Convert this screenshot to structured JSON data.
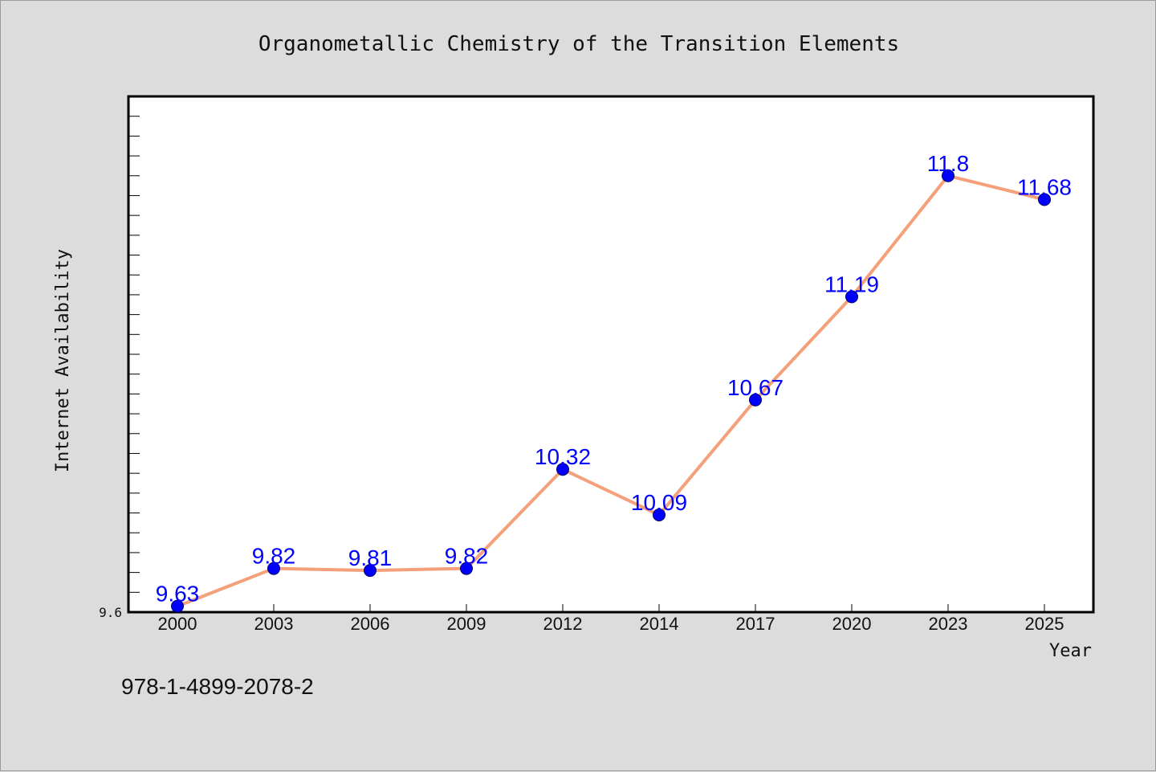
{
  "chart_data": {
    "type": "line",
    "title": "Organometallic Chemistry of the Transition Elements",
    "xlabel": "Year",
    "ylabel": "Internet Availability",
    "categories": [
      "2000",
      "2003",
      "2006",
      "2009",
      "2012",
      "2014",
      "2017",
      "2020",
      "2023",
      "2025"
    ],
    "series": [
      {
        "values": [
          9.63,
          9.82,
          9.81,
          9.82,
          10.32,
          10.09,
          10.67,
          11.19,
          11.8,
          11.68
        ]
      }
    ],
    "data_labels": [
      "9.63",
      "9.82",
      "9.81",
      "9.82",
      "10.32",
      "10.09",
      "10.67",
      "11.19",
      "11.8",
      "11.68"
    ],
    "ylim": [
      9.6,
      12.2
    ],
    "y_tick_labels": [
      "9.6"
    ],
    "grid": false,
    "legend": "none",
    "colors": {
      "line": "#f4a07a",
      "marker": "#0000ff",
      "data_label": "#0000ff",
      "background": "#dcdcdc",
      "plot_area": "#ffffff"
    }
  },
  "footer": {
    "isbn": "978-1-4899-2078-2"
  }
}
